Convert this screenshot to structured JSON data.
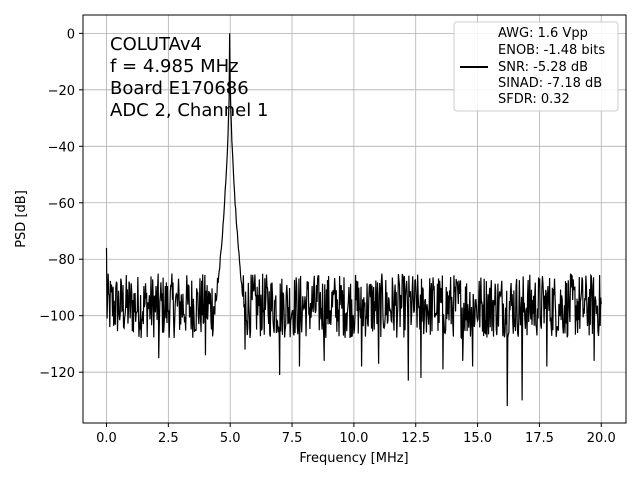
{
  "chart_data": {
    "type": "line",
    "xlabel": "Frequency [MHz]",
    "ylabel": "PSD [dB]",
    "xlim": [
      -0.95,
      21.0
    ],
    "ylim": [
      -138,
      6.5
    ],
    "xticks": [
      0.0,
      2.5,
      5.0,
      7.5,
      10.0,
      12.5,
      15.0,
      17.5,
      20.0
    ],
    "xtick_labels": [
      "0.0",
      "2.5",
      "5.0",
      "7.5",
      "10.0",
      "12.5",
      "15.0",
      "17.5",
      "20.0"
    ],
    "yticks": [
      0,
      -20,
      -40,
      -60,
      -80,
      -100,
      -120
    ],
    "ytick_labels": [
      "0",
      "−20",
      "−40",
      "−60",
      "−80",
      "−100",
      "−120"
    ],
    "grid": true,
    "annotation_lines": [
      "COLUTAv4",
      "f = 4.985 MHz",
      "Board E170686",
      "ADC 2, Channel 1"
    ],
    "legend": {
      "placement": "top-right",
      "entries": [
        "AWG: 1.6 Vpp",
        "ENOB: -1.48 bits",
        "SNR: -5.28 dB",
        "SINAD: -7.18 dB",
        "SFDR: 0.32"
      ]
    },
    "series": [
      {
        "color": "#000000",
        "signal_frequency_mhz": 4.985,
        "peak_db": 0,
        "noise_floor_db": -95,
        "noise_range_db": [
          -108,
          -85
        ],
        "deep_dips": [
          [
            2.1,
            -115
          ],
          [
            4.0,
            -114
          ],
          [
            5.6,
            -112
          ],
          [
            7.0,
            -121
          ],
          [
            7.8,
            -118
          ],
          [
            8.8,
            -116
          ],
          [
            10.3,
            -118
          ],
          [
            11.0,
            -117
          ],
          [
            12.2,
            -123
          ],
          [
            12.7,
            -122
          ],
          [
            13.6,
            -119
          ],
          [
            14.4,
            -116
          ],
          [
            14.8,
            -118
          ],
          [
            16.2,
            -132
          ],
          [
            16.8,
            -130
          ],
          [
            17.8,
            -118
          ],
          [
            19.7,
            -116
          ]
        ],
        "start_spike_db": -76
      }
    ]
  }
}
